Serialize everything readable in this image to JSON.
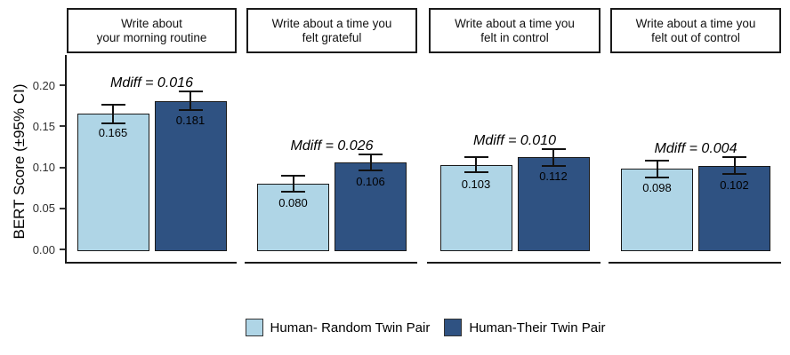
{
  "chart_data": {
    "type": "bar",
    "title": "",
    "ylabel": "BERT Score (±95% CI)",
    "ylim": [
      0,
      0.22
    ],
    "grid": false,
    "legend_position": "bottom",
    "yticks": [
      {
        "label": "0.00",
        "value": 0.0
      },
      {
        "label": "0.05",
        "value": 0.05
      },
      {
        "label": "0.10",
        "value": 0.1
      },
      {
        "label": "0.15",
        "value": 0.15
      },
      {
        "label": "0.20",
        "value": 0.2
      }
    ],
    "series_names": [
      "Human- Random Twin Pair",
      "Human-Their Twin Pair"
    ],
    "series_colors": [
      "#AFD5E6",
      "#2F5282"
    ],
    "facets": [
      {
        "title_lines": [
          "Write about",
          "your morning routine"
        ],
        "annotation": "Mdiff = 0.016",
        "bars": [
          {
            "series": 0,
            "value": 0.165,
            "label": "0.165",
            "ci": 0.011
          },
          {
            "series": 1,
            "value": 0.181,
            "label": "0.181",
            "ci": 0.011
          }
        ]
      },
      {
        "title_lines": [
          "Write about a time you",
          "felt grateful"
        ],
        "annotation": "Mdiff = 0.026",
        "bars": [
          {
            "series": 0,
            "value": 0.08,
            "label": "0.080",
            "ci": 0.01
          },
          {
            "series": 1,
            "value": 0.106,
            "label": "0.106",
            "ci": 0.01
          }
        ]
      },
      {
        "title_lines": [
          "Write about a time you",
          "felt in control"
        ],
        "annotation": "Mdiff = 0.010",
        "bars": [
          {
            "series": 0,
            "value": 0.103,
            "label": "0.103",
            "ci": 0.009
          },
          {
            "series": 1,
            "value": 0.112,
            "label": "0.112",
            "ci": 0.01
          }
        ]
      },
      {
        "title_lines": [
          "Write about a time you",
          "felt out of control"
        ],
        "annotation": "Mdiff = 0.004",
        "bars": [
          {
            "series": 0,
            "value": 0.098,
            "label": "0.098",
            "ci": 0.01
          },
          {
            "series": 1,
            "value": 0.102,
            "label": "0.102",
            "ci": 0.01
          }
        ]
      }
    ],
    "legend": [
      {
        "label": "Human- Random Twin Pair",
        "color": "#AFD5E6"
      },
      {
        "label": "Human-Their Twin Pair",
        "color": "#2F5282"
      }
    ]
  },
  "colors": {
    "axis": "#1a1a1a",
    "bar_outline": "#1a1a1a",
    "light_series": "#AFD5E6",
    "dark_series": "#2F5282",
    "background": "#ffffff"
  }
}
